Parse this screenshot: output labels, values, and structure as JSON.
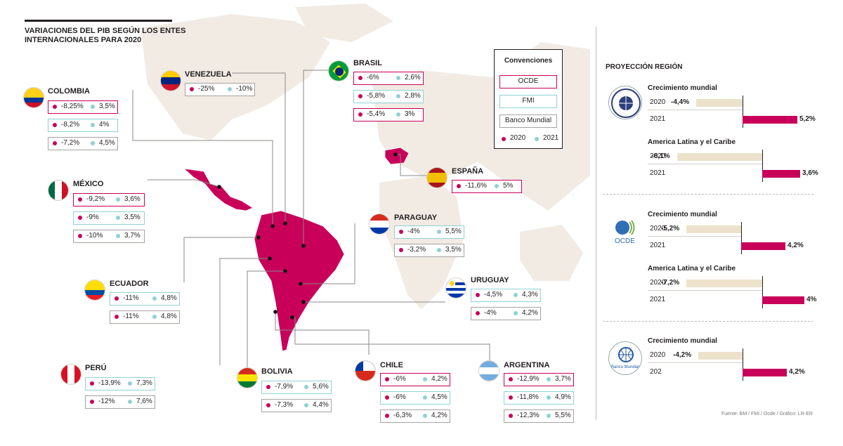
{
  "title": "VARIACIONES DEL PIB SEGÚN LOS ENTES INTERNACIONALES PARA 2020",
  "conventions": {
    "title": "Convenciones",
    "items": [
      "OCDE",
      "FMI",
      "Banco Mundial"
    ],
    "year_2020": "2020",
    "year_2021": "2021"
  },
  "colors": {
    "ocde": "#c8005a",
    "fmi": "#8fd1d6",
    "banco_mundial": "#a7a3a0",
    "map_land": "#f1ebe4",
    "latam": "#c8005a"
  },
  "chart_data": [
    {
      "type": "table",
      "title": "VARIACIONES DEL PIB SEGÚN LOS ENTES INTERNACIONALES PARA 2020",
      "columns": [
        "2020",
        "2021"
      ],
      "countries": [
        {
          "name": "COLOMBIA",
          "rows": [
            {
              "source": "OCDE",
              "v2020": "-8,25%",
              "v2021": "3,5%"
            },
            {
              "source": "FMI",
              "v2020": "-8,2%",
              "v2021": "4%"
            },
            {
              "source": "Banco Mundial",
              "v2020": "-7,2%",
              "v2021": "4,5%"
            }
          ]
        },
        {
          "name": "VENEZUELA",
          "rows": [
            {
              "source": "Banco Mundial",
              "v2020": "-25%",
              "v2021": "-10%"
            }
          ]
        },
        {
          "name": "BRASIL",
          "rows": [
            {
              "source": "OCDE",
              "v2020": "-6%",
              "v2021": "2,6%"
            },
            {
              "source": "FMI",
              "v2020": "-5,8%",
              "v2021": "2,8%"
            },
            {
              "source": "OCDE",
              "v2020": "-5,4%",
              "v2021": "3%"
            }
          ]
        },
        {
          "name": "MÉXICO",
          "rows": [
            {
              "source": "OCDE",
              "v2020": "-9,2%",
              "v2021": "3,6%"
            },
            {
              "source": "FMI",
              "v2020": "-9%",
              "v2021": "3,5%"
            },
            {
              "source": "Banco Mundial",
              "v2020": "-10%",
              "v2021": "3,7%"
            }
          ]
        },
        {
          "name": "ESPAÑA",
          "rows": [
            {
              "source": "OCDE",
              "v2020": "-11,6%",
              "v2021": "5%"
            }
          ]
        },
        {
          "name": "PARAGUAY",
          "rows": [
            {
              "source": "FMI",
              "v2020": "-4%",
              "v2021": "5,5%"
            },
            {
              "source": "Banco Mundial",
              "v2020": "-3,2%",
              "v2021": "3,5%"
            }
          ]
        },
        {
          "name": "ECUADOR",
          "rows": [
            {
              "source": "FMI",
              "v2020": "-11%",
              "v2021": "4,8%"
            },
            {
              "source": "Banco Mundial",
              "v2020": "-11%",
              "v2021": "4,8%"
            }
          ]
        },
        {
          "name": "URUGUAY",
          "rows": [
            {
              "source": "FMI",
              "v2020": "-4,5%",
              "v2021": "4,3%"
            },
            {
              "source": "Banco Mundial",
              "v2020": "-4%",
              "v2021": "4,2%"
            }
          ]
        },
        {
          "name": "PERÚ",
          "rows": [
            {
              "source": "FMI",
              "v2020": "-13,9%",
              "v2021": "7,3%"
            },
            {
              "source": "Banco Mundial",
              "v2020": "-12%",
              "v2021": "7,6%"
            }
          ]
        },
        {
          "name": "BOLIVIA",
          "rows": [
            {
              "source": "FMI",
              "v2020": "-7,9%",
              "v2021": "5,6%"
            },
            {
              "source": "Banco Mundial",
              "v2020": "-7,3%",
              "v2021": "4,4%"
            }
          ]
        },
        {
          "name": "CHILE",
          "rows": [
            {
              "source": "OCDE",
              "v2020": "-6%",
              "v2021": "4,2%"
            },
            {
              "source": "FMI",
              "v2020": "-6%",
              "v2021": "4,5%"
            },
            {
              "source": "Banco Mundial",
              "v2020": "-6,3%",
              "v2021": "4,2%"
            }
          ]
        },
        {
          "name": "ARGENTINA",
          "rows": [
            {
              "source": "OCDE",
              "v2020": "-12,9%",
              "v2021": "3,7%"
            },
            {
              "source": "FMI",
              "v2020": "-11,8%",
              "v2021": "4,9%"
            },
            {
              "source": "Banco Mundial",
              "v2020": "-12,3%",
              "v2021": "5,5%"
            }
          ]
        }
      ]
    },
    {
      "type": "bar",
      "title": "PROYECCIÓN REGIÓN",
      "groups": [
        {
          "source": "FMI",
          "label": "Crecimiento mundial",
          "items": [
            {
              "year": "2020",
              "value": -4.4,
              "text": "-4,4%"
            },
            {
              "year": "2021",
              "value": 5.2,
              "text": "5,2%"
            }
          ]
        },
        {
          "source": "FMI",
          "label": "America Latina y el Caribe",
          "items": [
            {
              "year": "2020",
              "value": -8.1,
              "text": "-8,1%"
            },
            {
              "year": "2021",
              "value": 3.6,
              "text": "3,6%"
            }
          ]
        },
        {
          "source": "OCDE",
          "label": "Crecimiento mundial",
          "items": [
            {
              "year": "2020",
              "value": -5.2,
              "text": "-5,2%"
            },
            {
              "year": "2021",
              "value": 4.2,
              "text": "4,2%"
            }
          ]
        },
        {
          "source": "OCDE",
          "label": "America Latina y el Caribe",
          "items": [
            {
              "year": "2020",
              "value": -7.2,
              "text": "-7,2%"
            },
            {
              "year": "2021",
              "value": 4,
              "text": "4%"
            }
          ]
        },
        {
          "source": "Banco Mundial",
          "label": "Crecimiento mundial",
          "items": [
            {
              "year": "2020",
              "value": -4.2,
              "text": "-4,2%"
            },
            {
              "year": "202",
              "value": 4.2,
              "text": "4,2%"
            }
          ]
        }
      ]
    }
  ],
  "logos": {
    "fmi": "FONDO MONETARIO INTERNACIONAL",
    "ocde": "OCDE",
    "bm": "Banco Mundial"
  },
  "source": "Fuente: BM / FMI / Ocde / Gráfico: LR-ER"
}
